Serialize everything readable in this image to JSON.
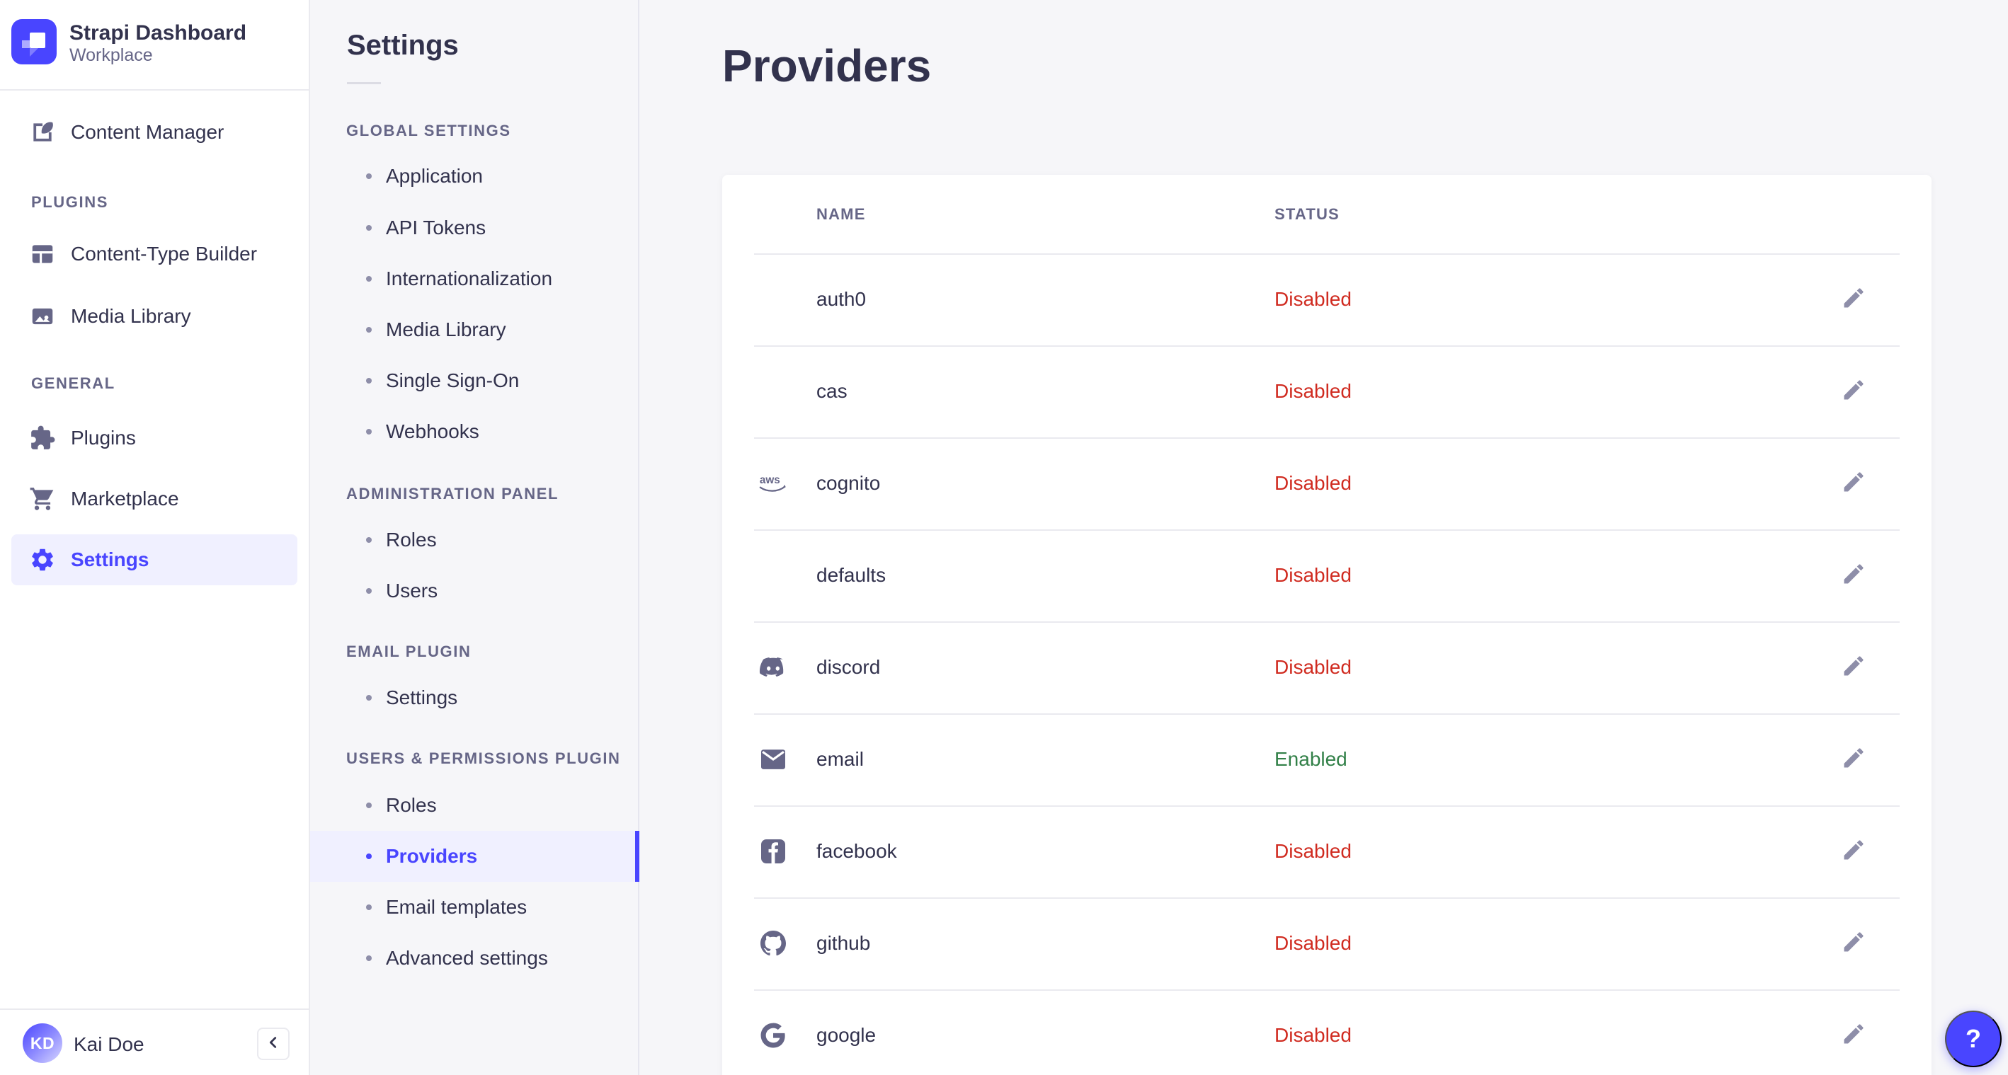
{
  "app": {
    "name": "Strapi Dashboard",
    "workspace": "Workplace",
    "user": {
      "initials": "KD",
      "name": "Kai Doe"
    },
    "collapse_icon": "chevron-left",
    "help_icon": "?"
  },
  "main_nav": {
    "top_items": [
      {
        "label": "Content Manager",
        "icon": "content-manager"
      }
    ],
    "sections": [
      {
        "title": "PLUGINS",
        "items": [
          {
            "label": "Content-Type Builder",
            "icon": "content-type-builder"
          },
          {
            "label": "Media Library",
            "icon": "media-library"
          }
        ]
      },
      {
        "title": "GENERAL",
        "items": [
          {
            "label": "Plugins",
            "icon": "plugins"
          },
          {
            "label": "Marketplace",
            "icon": "marketplace"
          },
          {
            "label": "Settings",
            "icon": "settings",
            "active": true
          }
        ]
      }
    ]
  },
  "subnav": {
    "title": "Settings",
    "sections": [
      {
        "title": "GLOBAL SETTINGS",
        "items": [
          {
            "label": "Application"
          },
          {
            "label": "API Tokens"
          },
          {
            "label": "Internationalization"
          },
          {
            "label": "Media Library"
          },
          {
            "label": "Single Sign-On"
          },
          {
            "label": "Webhooks"
          }
        ]
      },
      {
        "title": "ADMINISTRATION PANEL",
        "items": [
          {
            "label": "Roles"
          },
          {
            "label": "Users"
          }
        ]
      },
      {
        "title": "EMAIL PLUGIN",
        "items": [
          {
            "label": "Settings"
          }
        ]
      },
      {
        "title": "USERS & PERMISSIONS PLUGIN",
        "items": [
          {
            "label": "Roles"
          },
          {
            "label": "Providers",
            "active": true
          },
          {
            "label": "Email templates"
          },
          {
            "label": "Advanced settings"
          }
        ]
      }
    ]
  },
  "page": {
    "title": "Providers"
  },
  "table": {
    "columns": [
      "NAME",
      "STATUS"
    ],
    "rows": [
      {
        "name": "auth0",
        "icon": null,
        "status": "Disabled"
      },
      {
        "name": "cas",
        "icon": null,
        "status": "Disabled"
      },
      {
        "name": "cognito",
        "icon": "aws",
        "status": "Disabled"
      },
      {
        "name": "defaults",
        "icon": null,
        "status": "Disabled"
      },
      {
        "name": "discord",
        "icon": "discord",
        "status": "Disabled"
      },
      {
        "name": "email",
        "icon": "email",
        "status": "Enabled"
      },
      {
        "name": "facebook",
        "icon": "facebook",
        "status": "Disabled"
      },
      {
        "name": "github",
        "icon": "github",
        "status": "Disabled"
      },
      {
        "name": "google",
        "icon": "google",
        "status": "Disabled"
      }
    ]
  },
  "colors": {
    "primary": "#4945ff",
    "primary_bg": "#f0f0ff",
    "enabled": "#328048",
    "disabled": "#d02b20",
    "icon_gray": "#666687",
    "pencil_gray": "#8e8ea9"
  },
  "status_colors": {
    "Enabled": "#328048",
    "Disabled": "#d02b20"
  }
}
